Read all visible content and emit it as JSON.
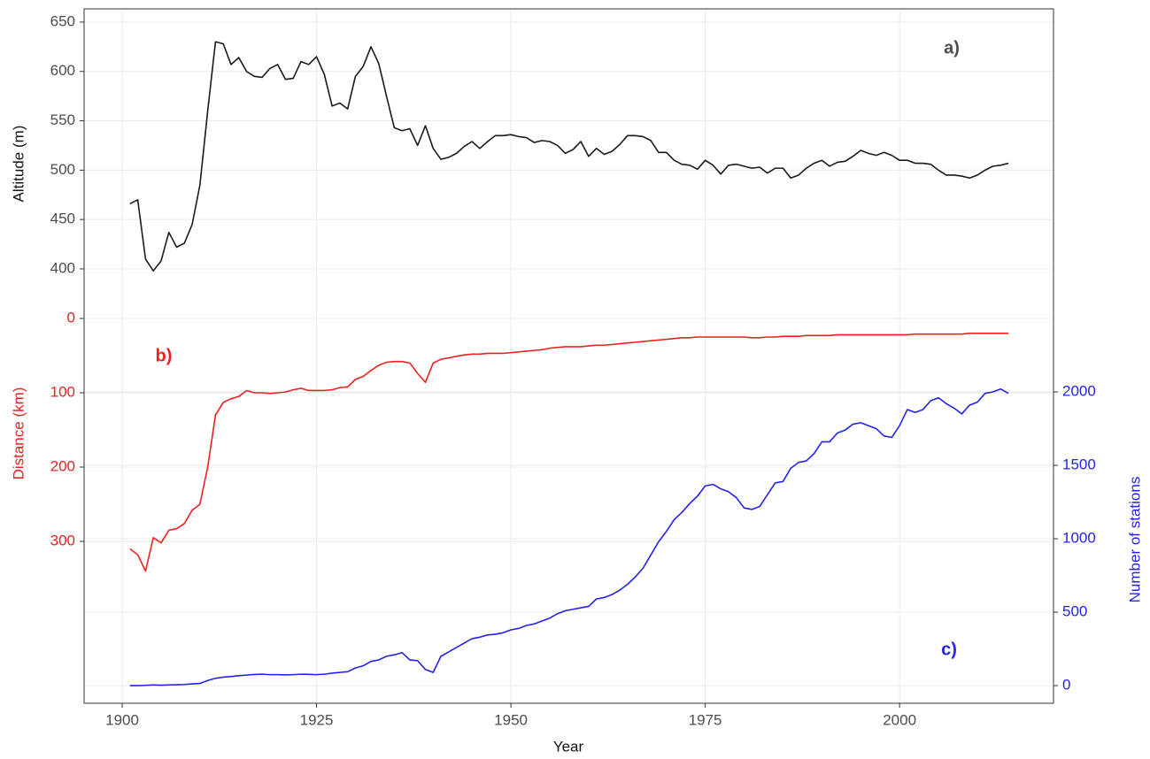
{
  "chart_data": [
    {
      "type": "line",
      "panel_label": "a)",
      "ylabel": "Altitude (m)",
      "yaxis": "left",
      "color": "#1a1a1a",
      "tick_color": "#4d4d4d",
      "xlabel": "Year",
      "xlim": [
        1895.1,
        2019.8
      ],
      "xticks": [
        1900,
        1925,
        1950,
        1975,
        2000
      ],
      "x": [
        1901,
        1902,
        1903,
        1904,
        1905,
        1906,
        1907,
        1908,
        1909,
        1910,
        1911,
        1912,
        1913,
        1914,
        1915,
        1916,
        1917,
        1918,
        1919,
        1920,
        1921,
        1922,
        1923,
        1924,
        1925,
        1926,
        1927,
        1928,
        1929,
        1930,
        1931,
        1932,
        1933,
        1934,
        1935,
        1936,
        1937,
        1938,
        1939,
        1940,
        1941,
        1942,
        1943,
        1944,
        1945,
        1946,
        1947,
        1948,
        1949,
        1950,
        1951,
        1952,
        1953,
        1954,
        1955,
        1956,
        1957,
        1958,
        1959,
        1960,
        1961,
        1962,
        1963,
        1964,
        1965,
        1966,
        1967,
        1968,
        1969,
        1970,
        1971,
        1972,
        1973,
        1974,
        1975,
        1976,
        1977,
        1978,
        1979,
        1980,
        1981,
        1982,
        1983,
        1984,
        1985,
        1986,
        1987,
        1988,
        1989,
        1990,
        1991,
        1992,
        1993,
        1994,
        1995,
        1996,
        1997,
        1998,
        1999,
        2000,
        2001,
        2002,
        2003,
        2004,
        2005,
        2006,
        2007,
        2008,
        2009,
        2010,
        2011,
        2012,
        2013,
        2014
      ],
      "values": [
        466,
        470,
        410,
        398,
        408,
        437,
        422,
        426,
        445,
        485,
        560,
        630,
        628,
        607,
        614,
        600,
        595,
        594,
        603,
        607,
        592,
        593,
        610,
        607,
        615,
        597,
        565,
        568,
        562,
        595,
        605,
        625,
        608,
        575,
        543,
        540,
        542,
        525,
        545,
        522,
        511,
        513,
        517,
        524,
        529,
        522,
        529,
        535,
        535,
        536,
        534,
        533,
        528,
        530,
        529,
        525,
        517,
        521,
        529,
        514,
        522,
        516,
        519,
        526,
        535,
        535,
        534,
        530,
        518,
        518,
        510,
        506,
        505,
        501,
        510,
        505,
        496,
        505,
        506,
        504,
        502,
        503,
        497,
        502,
        502,
        492,
        495,
        502,
        507,
        510,
        504,
        508,
        509,
        514,
        520,
        517,
        515,
        518,
        515,
        510,
        510,
        507,
        507,
        506,
        500,
        495,
        495,
        494,
        492,
        495,
        500,
        504,
        505,
        507
      ],
      "ylim": [
        -40,
        663.4
      ],
      "yticks": [
        400,
        450,
        500,
        550,
        600,
        650
      ]
    },
    {
      "type": "line",
      "panel_label": "b)",
      "ylabel": "Distance (km)",
      "yaxis": "left",
      "color": "#ee2020",
      "tick_color": "#ee2020",
      "x": [
        1901,
        1902,
        1903,
        1904,
        1905,
        1906,
        1907,
        1908,
        1909,
        1910,
        1911,
        1912,
        1913,
        1914,
        1915,
        1916,
        1917,
        1918,
        1919,
        1920,
        1921,
        1922,
        1923,
        1924,
        1925,
        1926,
        1927,
        1928,
        1929,
        1930,
        1931,
        1932,
        1933,
        1934,
        1935,
        1936,
        1937,
        1938,
        1939,
        1940,
        1941,
        1942,
        1943,
        1944,
        1945,
        1946,
        1947,
        1948,
        1949,
        1950,
        1951,
        1952,
        1953,
        1954,
        1955,
        1956,
        1957,
        1958,
        1959,
        1960,
        1961,
        1962,
        1963,
        1964,
        1965,
        1966,
        1967,
        1968,
        1969,
        1970,
        1971,
        1972,
        1973,
        1974,
        1975,
        1976,
        1977,
        1978,
        1979,
        1980,
        1981,
        1982,
        1983,
        1984,
        1985,
        1986,
        1987,
        1988,
        1989,
        1990,
        1991,
        1992,
        1993,
        1994,
        1995,
        1996,
        1997,
        1998,
        1999,
        2000,
        2001,
        2002,
        2003,
        2004,
        2005,
        2006,
        2007,
        2008,
        2009,
        2010,
        2011,
        2012,
        2013,
        2014
      ],
      "values": [
        310,
        318,
        340,
        295,
        302,
        285,
        283,
        276,
        258,
        250,
        200,
        130,
        113,
        108,
        105,
        97,
        100,
        100,
        101,
        100,
        99,
        96,
        94,
        97,
        97,
        97,
        96,
        93,
        92,
        82,
        78,
        70,
        63,
        59,
        58,
        58,
        60,
        74,
        86,
        60,
        55,
        53,
        51,
        49,
        48,
        48,
        47,
        47,
        47,
        46,
        45,
        44,
        43,
        42,
        40,
        39,
        38,
        38,
        38,
        37,
        36,
        36,
        35,
        34,
        33,
        32,
        31,
        30,
        29,
        28,
        27,
        26,
        26,
        25,
        25,
        25,
        25,
        25,
        25,
        25,
        26,
        26,
        25,
        25,
        24,
        24,
        24,
        23,
        23,
        23,
        23,
        22,
        22,
        22,
        22,
        22,
        22,
        22,
        22,
        22,
        22,
        21,
        21,
        21,
        21,
        21,
        21,
        21,
        20,
        20,
        20,
        20,
        20,
        20
      ],
      "ylim": [
        517.9,
        -416.7
      ],
      "yticks": [
        0,
        100,
        200,
        300
      ]
    },
    {
      "type": "line",
      "panel_label": "c)",
      "ylabel": "Number of stations",
      "yaxis": "right",
      "color": "#2323e8",
      "tick_color": "#2323e8",
      "x": [
        1901,
        1902,
        1903,
        1904,
        1905,
        1906,
        1907,
        1908,
        1909,
        1910,
        1911,
        1912,
        1913,
        1914,
        1915,
        1916,
        1917,
        1918,
        1919,
        1920,
        1921,
        1922,
        1923,
        1924,
        1925,
        1926,
        1927,
        1928,
        1929,
        1930,
        1931,
        1932,
        1933,
        1934,
        1935,
        1936,
        1937,
        1938,
        1939,
        1940,
        1941,
        1942,
        1943,
        1944,
        1945,
        1946,
        1947,
        1948,
        1949,
        1950,
        1951,
        1952,
        1953,
        1954,
        1955,
        1956,
        1957,
        1958,
        1959,
        1960,
        1961,
        1962,
        1963,
        1964,
        1965,
        1966,
        1967,
        1968,
        1969,
        1970,
        1971,
        1972,
        1973,
        1974,
        1975,
        1976,
        1977,
        1978,
        1979,
        1980,
        1981,
        1982,
        1983,
        1984,
        1985,
        1986,
        1987,
        1988,
        1989,
        1990,
        1991,
        1992,
        1993,
        1994,
        1995,
        1996,
        1997,
        1998,
        1999,
        2000,
        2001,
        2002,
        2003,
        2004,
        2005,
        2006,
        2007,
        2008,
        2009,
        2010,
        2011,
        2012,
        2013,
        2014
      ],
      "values": [
        0,
        0,
        2,
        5,
        3,
        5,
        6,
        8,
        12,
        15,
        35,
        50,
        58,
        62,
        68,
        72,
        76,
        78,
        75,
        75,
        73,
        75,
        78,
        77,
        75,
        78,
        85,
        90,
        95,
        120,
        135,
        165,
        175,
        200,
        210,
        225,
        175,
        170,
        110,
        90,
        200,
        230,
        260,
        290,
        320,
        330,
        345,
        350,
        360,
        380,
        390,
        410,
        420,
        440,
        460,
        490,
        510,
        520,
        530,
        540,
        590,
        600,
        620,
        650,
        690,
        740,
        800,
        890,
        980,
        1050,
        1130,
        1180,
        1240,
        1290,
        1360,
        1370,
        1340,
        1320,
        1280,
        1210,
        1200,
        1220,
        1300,
        1380,
        1390,
        1480,
        1520,
        1530,
        1580,
        1660,
        1660,
        1720,
        1740,
        1780,
        1790,
        1770,
        1750,
        1700,
        1690,
        1770,
        1880,
        1860,
        1880,
        1940,
        1960,
        1920,
        1890,
        1850,
        1910,
        1930,
        1990,
        2000,
        2020,
        1990
      ],
      "ylim": [
        -120,
        4608
      ],
      "yticks": [
        0,
        500,
        1000,
        1500,
        2000
      ]
    }
  ]
}
